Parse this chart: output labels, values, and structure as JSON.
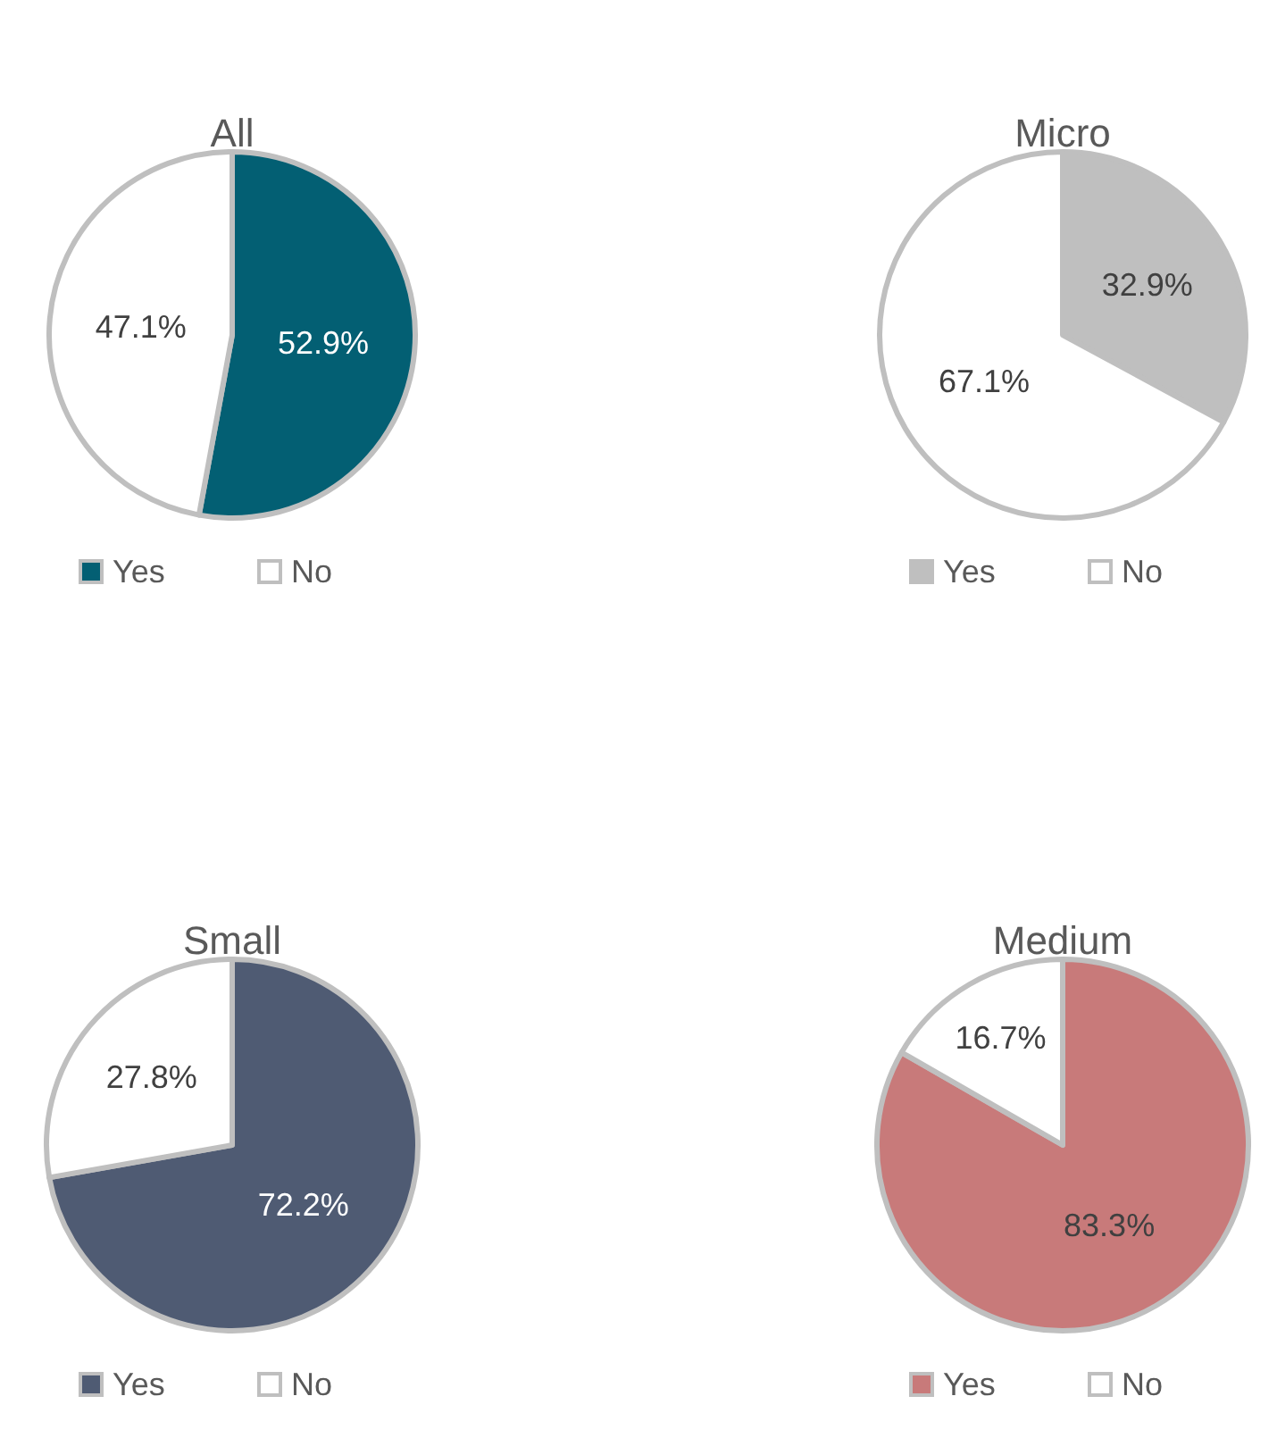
{
  "chart_data": [
    {
      "type": "pie",
      "title": "All",
      "categories": [
        "Yes",
        "No"
      ],
      "values": [
        52.9,
        47.1
      ],
      "value_labels": [
        "52.9%",
        "47.1%"
      ],
      "colors": [
        "#035f73",
        "#ffffff"
      ],
      "legend": "bottom"
    },
    {
      "type": "pie",
      "title": "Micro",
      "categories": [
        "Yes",
        "No"
      ],
      "values": [
        32.9,
        67.1
      ],
      "value_labels": [
        "32.9%",
        "67.1%"
      ],
      "colors": [
        "#bfbfbf",
        "#ffffff"
      ],
      "legend": "bottom"
    },
    {
      "type": "pie",
      "title": "Small",
      "categories": [
        "Yes",
        "No"
      ],
      "values": [
        72.2,
        27.8
      ],
      "value_labels": [
        "72.2%",
        "27.8%"
      ],
      "colors": [
        "#4f5b73",
        "#ffffff"
      ],
      "legend": "bottom"
    },
    {
      "type": "pie",
      "title": "Medium",
      "categories": [
        "Yes",
        "No"
      ],
      "values": [
        83.3,
        16.7
      ],
      "value_labels": [
        "83.3%",
        "16.7%"
      ],
      "colors": [
        "#c87a7a",
        "#ffffff"
      ],
      "legend": "bottom"
    }
  ]
}
